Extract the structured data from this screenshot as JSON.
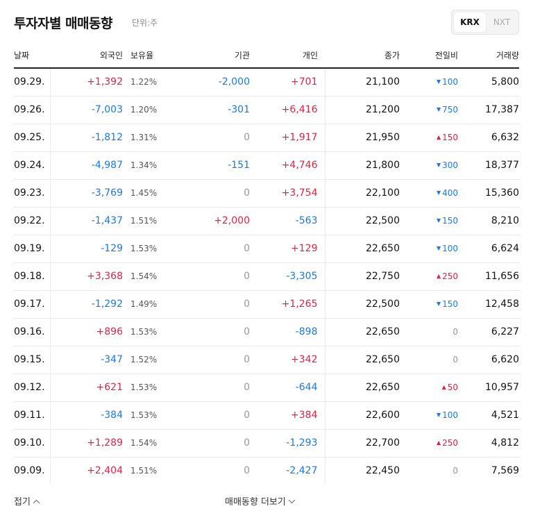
{
  "header": {
    "title": "투자자별 매매동향",
    "unit": "단위:주",
    "market_tabs": [
      "KRX",
      "NXT"
    ],
    "selected_tab": "KRX"
  },
  "table": {
    "columns": {
      "date": "날짜",
      "foreign": "외국인",
      "holding": "보유율",
      "institution": "기관",
      "individual": "개인",
      "close": "종가",
      "change": "전일비",
      "volume": "거래량"
    },
    "rows": [
      {
        "date": "09.29.",
        "foreign": "+1,392",
        "holding": "1.22%",
        "institution": "-2,000",
        "individual": "+701",
        "close": "21,100",
        "change": "100",
        "change_dir": "down",
        "volume": "5,800"
      },
      {
        "date": "09.26.",
        "foreign": "-7,003",
        "holding": "1.20%",
        "institution": "-301",
        "individual": "+6,416",
        "close": "21,200",
        "change": "750",
        "change_dir": "down",
        "volume": "17,387"
      },
      {
        "date": "09.25.",
        "foreign": "-1,812",
        "holding": "1.31%",
        "institution": "0",
        "individual": "+1,917",
        "close": "21,950",
        "change": "150",
        "change_dir": "up",
        "volume": "6,632"
      },
      {
        "date": "09.24.",
        "foreign": "-4,987",
        "holding": "1.34%",
        "institution": "-151",
        "individual": "+4,746",
        "close": "21,800",
        "change": "300",
        "change_dir": "down",
        "volume": "18,377"
      },
      {
        "date": "09.23.",
        "foreign": "-3,769",
        "holding": "1.45%",
        "institution": "0",
        "individual": "+3,754",
        "close": "22,100",
        "change": "400",
        "change_dir": "down",
        "volume": "15,360"
      },
      {
        "date": "09.22.",
        "foreign": "-1,437",
        "holding": "1.51%",
        "institution": "+2,000",
        "individual": "-563",
        "close": "22,500",
        "change": "150",
        "change_dir": "down",
        "volume": "8,210"
      },
      {
        "date": "09.19.",
        "foreign": "-129",
        "holding": "1.53%",
        "institution": "0",
        "individual": "+129",
        "close": "22,650",
        "change": "100",
        "change_dir": "down",
        "volume": "6,624"
      },
      {
        "date": "09.18.",
        "foreign": "+3,368",
        "holding": "1.54%",
        "institution": "0",
        "individual": "-3,305",
        "close": "22,750",
        "change": "250",
        "change_dir": "up",
        "volume": "11,656"
      },
      {
        "date": "09.17.",
        "foreign": "-1,292",
        "holding": "1.49%",
        "institution": "0",
        "individual": "+1,265",
        "close": "22,500",
        "change": "150",
        "change_dir": "down",
        "volume": "12,458"
      },
      {
        "date": "09.16.",
        "foreign": "+896",
        "holding": "1.53%",
        "institution": "0",
        "individual": "-898",
        "close": "22,650",
        "change": "0",
        "change_dir": "flat",
        "volume": "6,227"
      },
      {
        "date": "09.15.",
        "foreign": "-347",
        "holding": "1.52%",
        "institution": "0",
        "individual": "+342",
        "close": "22,650",
        "change": "0",
        "change_dir": "flat",
        "volume": "6,620"
      },
      {
        "date": "09.12.",
        "foreign": "+621",
        "holding": "1.53%",
        "institution": "0",
        "individual": "-644",
        "close": "22,650",
        "change": "50",
        "change_dir": "up",
        "volume": "10,957"
      },
      {
        "date": "09.11.",
        "foreign": "-384",
        "holding": "1.53%",
        "institution": "0",
        "individual": "+384",
        "close": "22,600",
        "change": "100",
        "change_dir": "down",
        "volume": "4,521"
      },
      {
        "date": "09.10.",
        "foreign": "+1,289",
        "holding": "1.54%",
        "institution": "0",
        "individual": "-1,293",
        "close": "22,700",
        "change": "250",
        "change_dir": "up",
        "volume": "4,812"
      },
      {
        "date": "09.09.",
        "foreign": "+2,404",
        "holding": "1.51%",
        "institution": "0",
        "individual": "-2,427",
        "close": "22,450",
        "change": "0",
        "change_dir": "flat",
        "volume": "7,569"
      }
    ]
  },
  "footer": {
    "fold_label": "접기",
    "more_label": "매매동향 더보기"
  },
  "colors": {
    "up": "#e12343",
    "down": "#1a79e2",
    "zero": "#999999"
  },
  "icons": {
    "fold": "chevron-up-icon",
    "more": "chevron-down-icon",
    "up_change": "triangle-up-icon",
    "down_change": "triangle-down-icon"
  }
}
